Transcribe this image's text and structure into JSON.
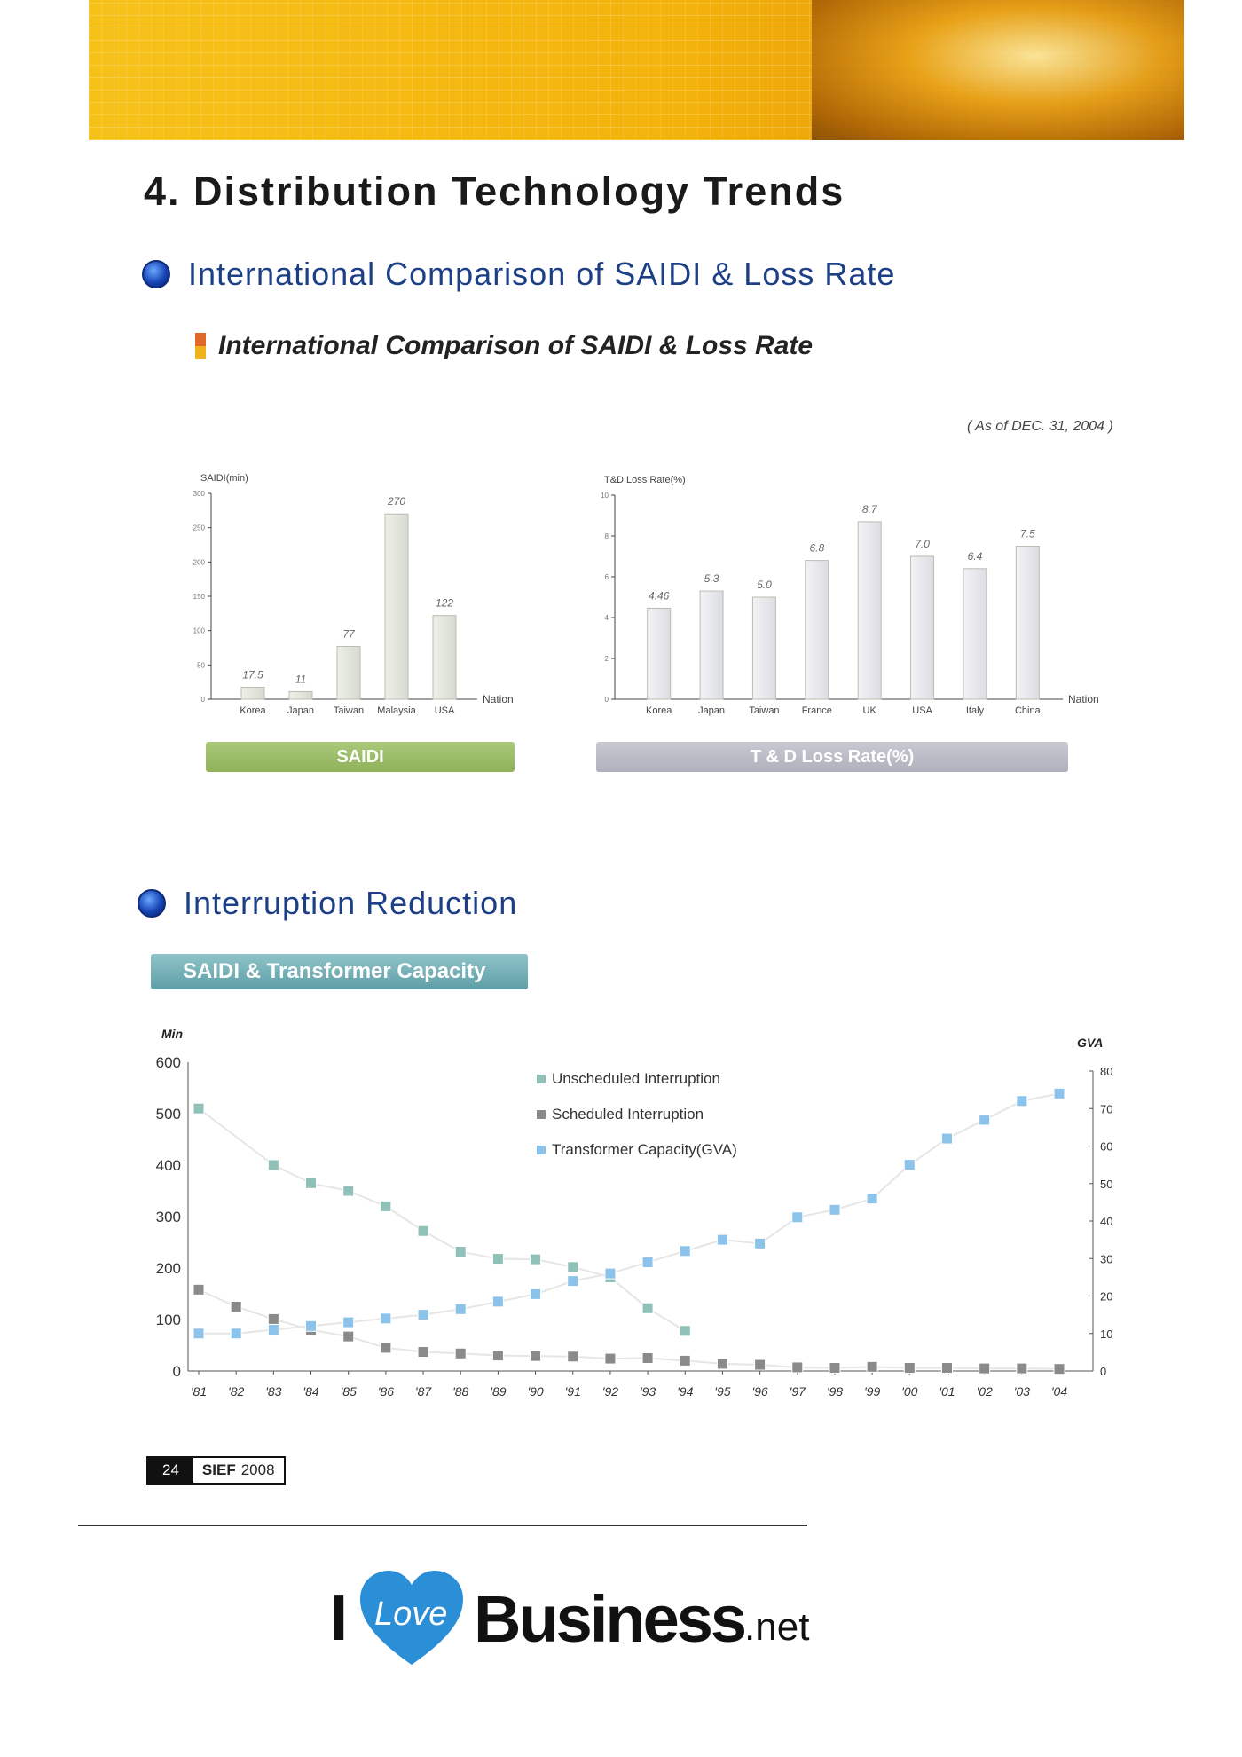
{
  "page": {
    "title": "4. Distribution Technology Trends",
    "section1": "International Comparison of SAIDI & Loss Rate",
    "subheading": "International Comparison of SAIDI & Loss Rate",
    "as_of": "( As of DEC. 31, 2004 )",
    "section2": "Interruption Reduction",
    "capacity_tag": "SAIDI & Transformer Capacity",
    "footer": {
      "page_number": "24",
      "pub_bold": "SIEF",
      "pub_year": "2008"
    },
    "logo": {
      "i": "I",
      "love": "Love",
      "business": "Business",
      "net": ".net"
    }
  },
  "colors": {
    "heading_blue": "#1c3f86",
    "saidi_green": "#8fb25a",
    "loss_gray": "#aeb0bb",
    "unscheduled": "#8fc1b8",
    "scheduled": "#8a8a8a",
    "capacity": "#8cc3ea",
    "logo_blue": "#2a8fd6"
  },
  "chart_data": [
    {
      "type": "bar",
      "title": "SAIDI",
      "ylabel": "SAIDI(min)",
      "xlabel": "Nation",
      "ylim": [
        0,
        300
      ],
      "yticks": [
        0,
        50,
        100,
        150,
        200,
        250,
        300
      ],
      "categories": [
        "Korea",
        "Japan",
        "Taiwan",
        "Malaysia",
        "USA"
      ],
      "values": [
        17.5,
        11,
        77,
        270,
        122
      ],
      "labels": [
        "17.5",
        "11",
        "77",
        "270",
        "122"
      ]
    },
    {
      "type": "bar",
      "title": "T & D Loss Rate(%)",
      "ylabel": "T&D Loss Rate(%)",
      "xlabel": "Nation",
      "ylim": [
        0,
        10
      ],
      "yticks": [
        0,
        2,
        4,
        6,
        8,
        10
      ],
      "categories": [
        "Korea",
        "Japan",
        "Taiwan",
        "France",
        "UK",
        "USA",
        "Italy",
        "China"
      ],
      "values": [
        4.46,
        5.3,
        5.0,
        6.8,
        8.7,
        7.0,
        6.4,
        7.5
      ],
      "labels": [
        "4.46",
        "5.3",
        "5.0",
        "6.8",
        "8.7",
        "7.0",
        "6.4",
        "7.5"
      ]
    },
    {
      "type": "scatter",
      "title": "SAIDI & Transformer Capacity",
      "ylabel": "Min",
      "y2label": "GVA",
      "ylim": [
        0,
        600
      ],
      "y2lim": [
        0,
        80
      ],
      "yticks": [
        0,
        100,
        200,
        300,
        400,
        500,
        600
      ],
      "y2ticks": [
        0,
        10,
        20,
        30,
        40,
        50,
        60,
        70,
        80
      ],
      "x": [
        "'81",
        "'82",
        "'83",
        "'84",
        "'85",
        "'86",
        "'87",
        "'88",
        "'89",
        "'90",
        "'91",
        "'92",
        "'93",
        "'94",
        "'95",
        "'96",
        "'97",
        "'98",
        "'99",
        "'00",
        "'01",
        "'02",
        "'03",
        "'04"
      ],
      "series": [
        {
          "name": "Unscheduled Interruption",
          "axis": "left",
          "values": [
            510,
            null,
            400,
            365,
            350,
            320,
            272,
            232,
            218,
            217,
            202,
            182,
            122,
            78,
            null,
            null,
            null,
            null,
            null,
            null,
            null,
            null,
            null,
            null
          ]
        },
        {
          "name": "Scheduled Interruption",
          "axis": "left",
          "values": [
            158,
            125,
            101,
            80,
            67,
            45,
            37,
            34,
            30,
            29,
            28,
            24,
            25,
            20,
            14,
            12,
            7,
            6,
            8,
            6,
            6,
            5,
            5,
            4
          ]
        },
        {
          "name": "Transformer Capacity(GVA)",
          "axis": "right",
          "values": [
            10,
            10,
            11,
            12,
            13,
            14,
            15,
            16.5,
            18.5,
            20.5,
            24,
            26,
            29,
            32,
            35,
            34,
            41,
            43,
            46,
            55,
            62,
            67,
            72,
            74
          ]
        }
      ]
    }
  ]
}
